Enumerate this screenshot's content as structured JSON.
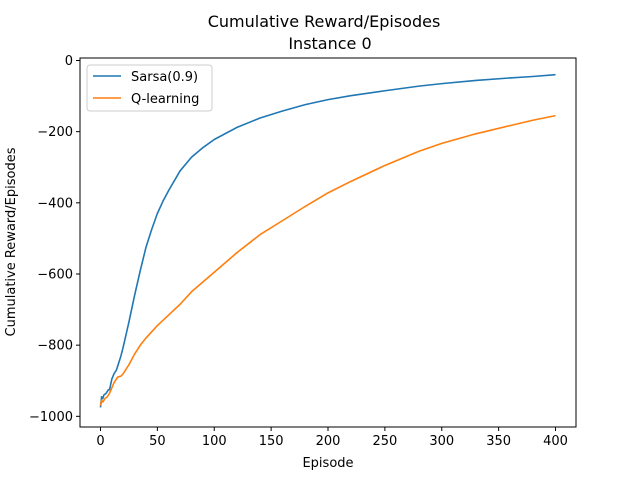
{
  "chart_data": {
    "type": "line",
    "title": "Cumulative Reward/Episodes",
    "subtitle": "Instance 0",
    "xlabel": "Episode",
    "ylabel": "Cumulative Reward/Episodes",
    "xlim": [
      -18,
      418
    ],
    "ylim": [
      -1030,
      7
    ],
    "xticks": [
      0,
      50,
      100,
      150,
      200,
      250,
      300,
      350,
      400
    ],
    "yticks": [
      0,
      -200,
      -400,
      -600,
      -800,
      -1000
    ],
    "ytick_labels": [
      "0",
      "−200",
      "−400",
      "−600",
      "−800",
      "−1000"
    ],
    "grid": false,
    "legend_position": "top-left",
    "series": [
      {
        "name": "Sarsa(0.9)",
        "color": "#1f77b4",
        "x": [
          0,
          1,
          2,
          3,
          5,
          7,
          8,
          10,
          12,
          14,
          16,
          18,
          20,
          25,
          30,
          35,
          40,
          45,
          50,
          55,
          60,
          70,
          80,
          90,
          100,
          120,
          140,
          160,
          180,
          200,
          220,
          250,
          280,
          300,
          330,
          360,
          380,
          400
        ],
        "values": [
          -975,
          -945,
          -950,
          -940,
          -935,
          -925,
          -925,
          -895,
          -880,
          -870,
          -850,
          -830,
          -805,
          -735,
          -660,
          -590,
          -525,
          -475,
          -430,
          -395,
          -365,
          -310,
          -272,
          -245,
          -222,
          -188,
          -162,
          -142,
          -124,
          -110,
          -99,
          -85,
          -72,
          -65,
          -56,
          -49,
          -45,
          -40
        ]
      },
      {
        "name": "Q-learning",
        "color": "#ff7f0e",
        "x": [
          0,
          1,
          2,
          4,
          6,
          8,
          10,
          12,
          15,
          18,
          20,
          25,
          30,
          35,
          40,
          50,
          60,
          70,
          80,
          100,
          120,
          140,
          160,
          180,
          200,
          220,
          250,
          280,
          300,
          330,
          360,
          380,
          400
        ],
        "values": [
          -970,
          -955,
          -960,
          -950,
          -945,
          -935,
          -920,
          -905,
          -890,
          -887,
          -880,
          -855,
          -825,
          -800,
          -780,
          -745,
          -715,
          -685,
          -650,
          -595,
          -540,
          -490,
          -450,
          -410,
          -372,
          -340,
          -295,
          -255,
          -233,
          -206,
          -183,
          -168,
          -155
        ]
      }
    ]
  }
}
